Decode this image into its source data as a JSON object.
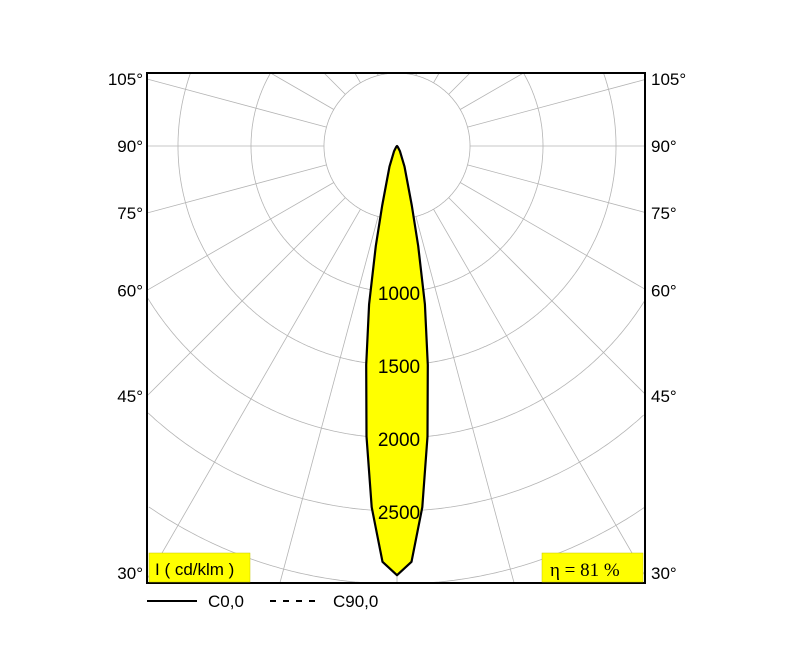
{
  "chart_data": {
    "type": "polar",
    "title": "",
    "unit_label": "I ( cd/klm )",
    "efficiency_label": "η = 81 %",
    "radial_ticks": [
      1000,
      1500,
      2000,
      2500
    ],
    "radial_grid": [
      500,
      1000,
      1500,
      2000,
      2500,
      3000
    ],
    "rmax": 3000,
    "angle_labels": [
      "105°",
      "90°",
      "75°",
      "60°",
      "45°",
      "30°"
    ],
    "angle_values": [
      105,
      90,
      75,
      60,
      45,
      30
    ],
    "angle_grid_step": 15,
    "grid": true,
    "legend_placement": "bottom-left",
    "colors": {
      "fill": "#ffff00",
      "line": "#000000",
      "grid": "#b4b4b4"
    },
    "series": [
      {
        "name": "C0,0",
        "style": "solid",
        "angles": [
          0,
          2,
          4,
          6,
          8,
          10,
          12,
          14,
          16,
          20,
          30,
          40,
          90
        ],
        "values": [
          2940,
          2850,
          2480,
          2000,
          1515,
          1100,
          700,
          420,
          260,
          150,
          40,
          10,
          0
        ]
      },
      {
        "name": "C90,0",
        "style": "dashed",
        "angles": [
          0,
          2,
          4,
          6,
          8,
          10,
          12,
          14,
          16,
          20,
          30,
          40,
          90
        ],
        "values": [
          2940,
          2850,
          2480,
          2000,
          1515,
          1100,
          700,
          420,
          260,
          150,
          40,
          10,
          0
        ]
      }
    ]
  }
}
